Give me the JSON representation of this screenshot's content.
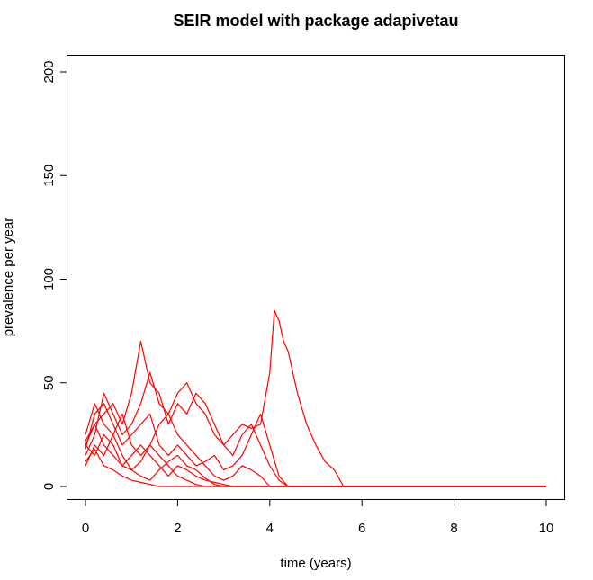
{
  "chart_data": {
    "type": "line",
    "title": "SEIR model with package adapivetau",
    "xlabel": "time (years)",
    "ylabel": "prevalence per year",
    "xlim": [
      0,
      10
    ],
    "ylim": [
      0,
      200
    ],
    "x_ticks": [
      0,
      2,
      4,
      6,
      8,
      10
    ],
    "y_ticks": [
      0,
      50,
      100,
      150,
      200
    ],
    "grid": false,
    "legend": "none",
    "line_color": "#ff0000",
    "series": [
      {
        "x": [
          0,
          0.2,
          0.4,
          0.6,
          0.8,
          1.0,
          1.2,
          1.4,
          1.6,
          1.8,
          2.0,
          2.2,
          2.4,
          2.6,
          2.8,
          3.0,
          3.2,
          3.4,
          3.6,
          3.8,
          4.0,
          4.1,
          4.2,
          4.3,
          4.4,
          4.5,
          4.6,
          4.8,
          5.0,
          5.2,
          5.4,
          5.6,
          10.0
        ],
        "values": [
          20,
          30,
          35,
          40,
          30,
          45,
          70,
          50,
          45,
          30,
          40,
          35,
          45,
          40,
          30,
          20,
          25,
          30,
          28,
          30,
          55,
          85,
          80,
          70,
          65,
          55,
          45,
          30,
          20,
          12,
          8,
          0,
          0
        ]
      },
      {
        "x": [
          0,
          0.2,
          0.4,
          0.6,
          0.8,
          1.0,
          1.2,
          1.4,
          1.6,
          1.8,
          2.0,
          2.2,
          2.4,
          2.6,
          2.8,
          3.0,
          3.2,
          3.4,
          3.6,
          3.8,
          4.0,
          4.2,
          4.4,
          10.0
        ],
        "values": [
          15,
          25,
          45,
          35,
          25,
          30,
          40,
          55,
          40,
          35,
          45,
          50,
          40,
          35,
          25,
          20,
          15,
          25,
          30,
          20,
          10,
          3,
          0,
          0
        ]
      },
      {
        "x": [
          0,
          0.2,
          0.4,
          0.6,
          0.8,
          1.0,
          1.2,
          1.4,
          1.6,
          1.8,
          2.0,
          2.2,
          2.4,
          2.6,
          2.8,
          3.0,
          3.2,
          3.4,
          3.6,
          3.8,
          4.0,
          4.2,
          4.4,
          10.0
        ],
        "values": [
          18,
          35,
          40,
          30,
          20,
          25,
          30,
          35,
          20,
          15,
          20,
          15,
          10,
          12,
          15,
          8,
          10,
          15,
          25,
          35,
          20,
          5,
          0,
          0
        ]
      },
      {
        "x": [
          0,
          0.2,
          0.4,
          0.6,
          0.8,
          1.0,
          1.2,
          1.4,
          1.6,
          1.8,
          2.0,
          2.2,
          2.4,
          2.6,
          2.8,
          3.0,
          3.2,
          3.4,
          3.6,
          3.8,
          4.0,
          10.0
        ],
        "values": [
          25,
          40,
          30,
          25,
          35,
          20,
          15,
          20,
          30,
          35,
          25,
          20,
          15,
          10,
          5,
          3,
          5,
          10,
          8,
          5,
          0,
          0
        ]
      },
      {
        "x": [
          0,
          0.2,
          0.4,
          0.6,
          0.8,
          1.0,
          1.2,
          1.4,
          1.6,
          1.8,
          2.0,
          2.2,
          2.4,
          2.6,
          2.8,
          3.0,
          3.2,
          10.0
        ],
        "values": [
          20,
          15,
          25,
          20,
          10,
          15,
          20,
          15,
          10,
          5,
          10,
          8,
          5,
          3,
          2,
          1,
          0,
          0
        ]
      },
      {
        "x": [
          0,
          0.2,
          0.4,
          0.6,
          0.8,
          1.0,
          1.2,
          1.4,
          1.6,
          1.8,
          2.0,
          2.2,
          2.4,
          2.6,
          2.8,
          3.0,
          10.0
        ],
        "values": [
          10,
          20,
          15,
          25,
          15,
          8,
          5,
          3,
          8,
          12,
          15,
          10,
          8,
          4,
          1,
          0,
          0
        ]
      },
      {
        "x": [
          0,
          0.2,
          0.4,
          0.6,
          0.8,
          1.0,
          1.2,
          1.4,
          1.6,
          1.8,
          2.0,
          2.2,
          2.4,
          2.6,
          10.0
        ],
        "values": [
          22,
          30,
          20,
          15,
          10,
          8,
          12,
          20,
          15,
          10,
          5,
          3,
          1,
          0,
          0
        ]
      },
      {
        "x": [
          0,
          0.2,
          0.4,
          0.6,
          0.8,
          1.0,
          1.2,
          1.4,
          1.6,
          10.0
        ],
        "values": [
          12,
          18,
          10,
          8,
          5,
          3,
          2,
          1,
          0,
          0
        ]
      }
    ]
  }
}
